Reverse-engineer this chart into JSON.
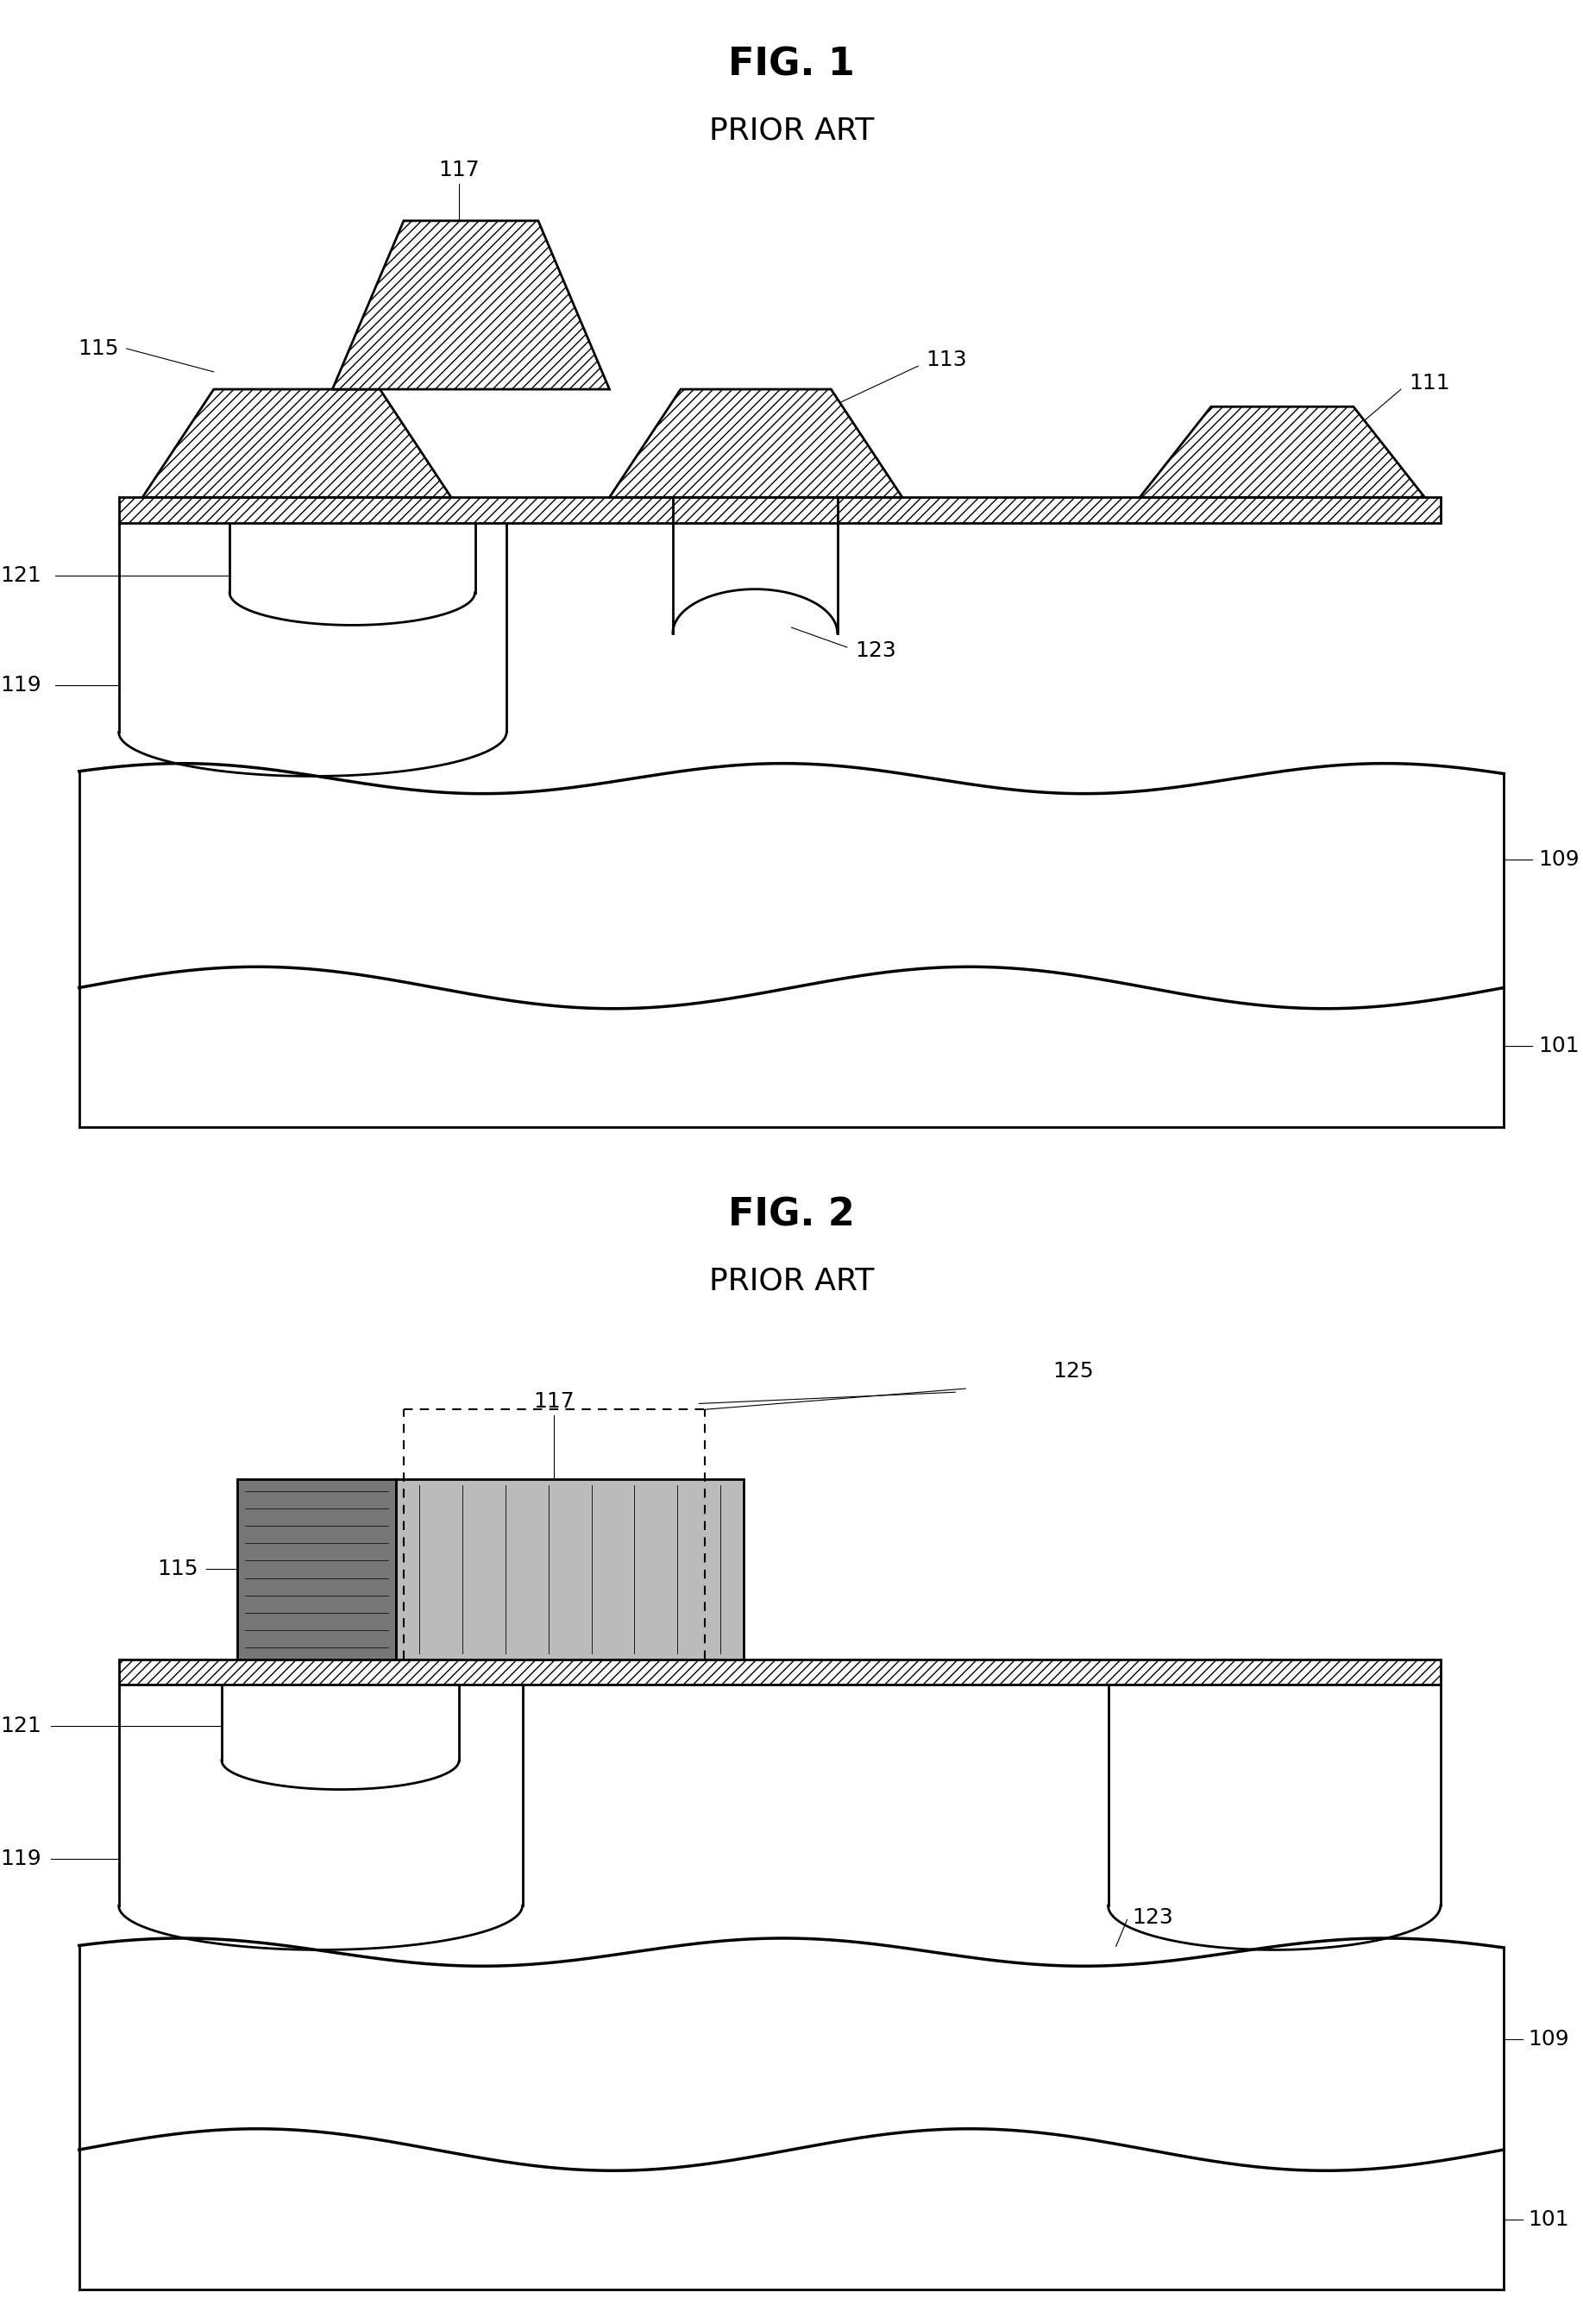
{
  "bg_color": "#ffffff",
  "fig1_title": "FIG. 1",
  "fig1_subtitle": "PRIOR ART",
  "fig2_title": "FIG. 2",
  "fig2_subtitle": "PRIOR ART",
  "line_color": "#000000",
  "line_width": 2.0,
  "label_fontsize": 18,
  "title_fontsize": 32,
  "subtitle_fontsize": 26
}
